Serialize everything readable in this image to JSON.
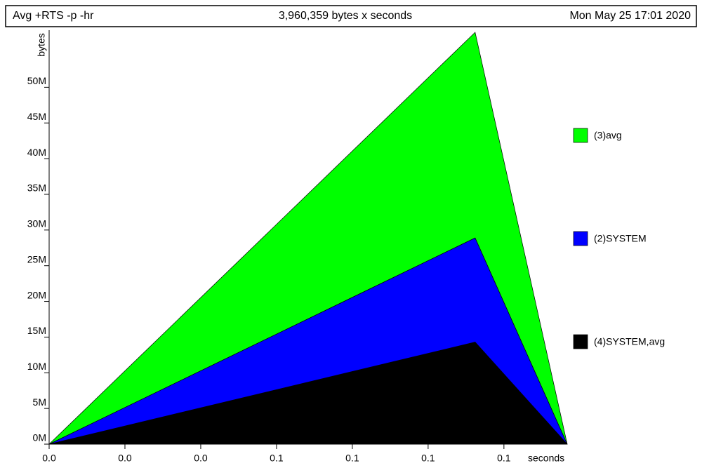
{
  "chart_data": {
    "type": "stacked-area",
    "title": "Avg +RTS -p -hr",
    "subtitle": "3,960,359 bytes x seconds",
    "date": "Mon May 25 17:01 2020",
    "y_label": "bytes",
    "x_label": "seconds",
    "x": [
      0,
      0.1124,
      0.1367
    ],
    "xlim": [
      0,
      0.1367
    ],
    "xticks": [
      {
        "value": 0,
        "label": "0.0"
      },
      {
        "value": 0.02,
        "label": "0.0"
      },
      {
        "value": 0.04,
        "label": "0.0"
      },
      {
        "value": 0.06,
        "label": "0.1"
      },
      {
        "value": 0.08,
        "label": "0.1"
      },
      {
        "value": 0.1,
        "label": "0.1"
      },
      {
        "value": 0.12,
        "label": "0.1"
      }
    ],
    "ylim": [
      0,
      58000000
    ],
    "yticks": [
      {
        "value": 0,
        "label": "0M"
      },
      {
        "value": 5000000,
        "label": "5M"
      },
      {
        "value": 10000000,
        "label": "10M"
      },
      {
        "value": 15000000,
        "label": "15M"
      },
      {
        "value": 20000000,
        "label": "20M"
      },
      {
        "value": 25000000,
        "label": "25M"
      },
      {
        "value": 30000000,
        "label": "30M"
      },
      {
        "value": 35000000,
        "label": "35M"
      },
      {
        "value": 40000000,
        "label": "40M"
      },
      {
        "value": 45000000,
        "label": "45M"
      },
      {
        "value": 50000000,
        "label": "50M"
      }
    ],
    "series": [
      {
        "name": "(4)SYSTEM,avg",
        "color": "#000000",
        "values": [
          0,
          14300000,
          0
        ]
      },
      {
        "name": "(2)SYSTEM",
        "color": "#0000ff",
        "values": [
          0,
          14600000,
          0
        ]
      },
      {
        "name": "(3)avg",
        "color": "#00ff00",
        "values": [
          0,
          28800000,
          0
        ]
      }
    ]
  }
}
